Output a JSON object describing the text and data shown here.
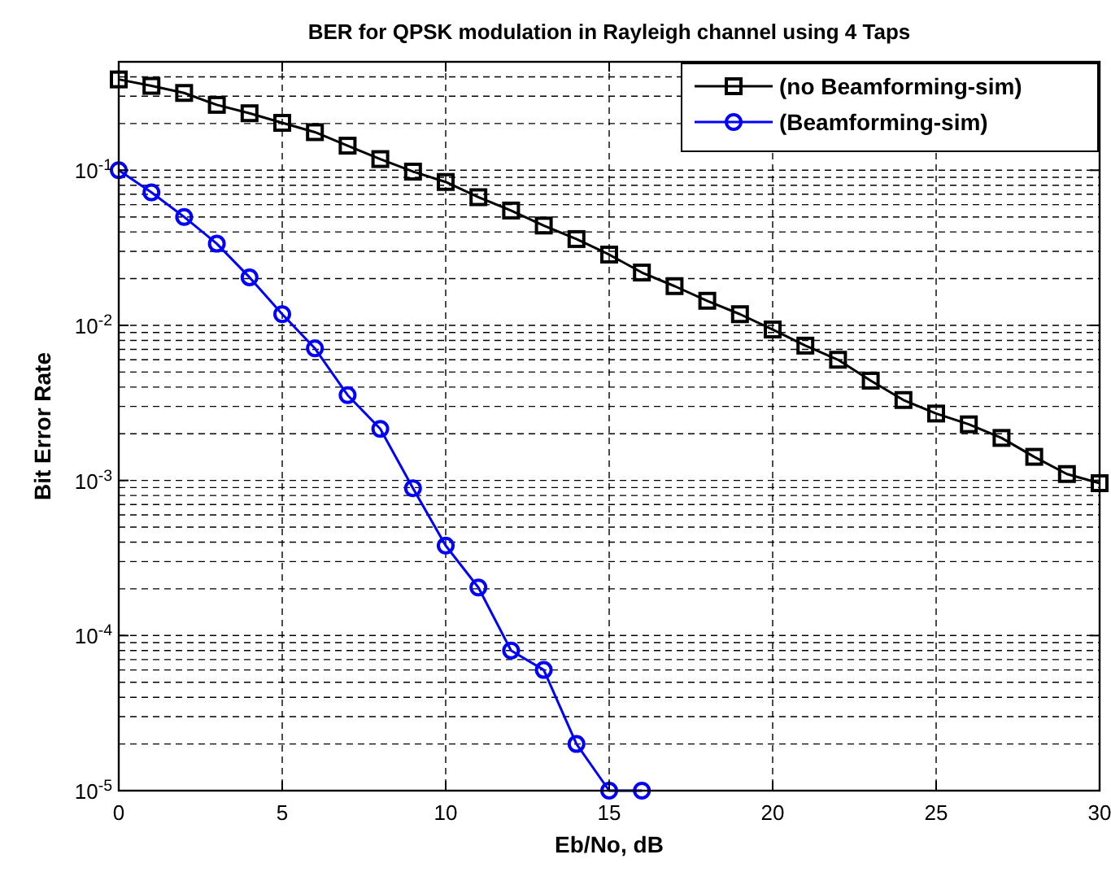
{
  "chart_data": {
    "type": "line",
    "title": "BER for QPSK modulation in Rayleigh channel using 4 Taps",
    "xlabel": "Eb/No, dB",
    "ylabel": "Bit Error Rate",
    "x": [
      0,
      1,
      2,
      3,
      4,
      5,
      6,
      7,
      8,
      9,
      10,
      11,
      12,
      13,
      14,
      15,
      16,
      17,
      18,
      19,
      20,
      21,
      22,
      23,
      24,
      25,
      26,
      27,
      28,
      29,
      30
    ],
    "series": [
      {
        "name": "(no Beamforming-sim)",
        "color": "#000000",
        "marker": "square",
        "values": [
          0.385,
          0.35,
          0.315,
          0.264,
          0.233,
          0.202,
          0.176,
          0.144,
          0.118,
          0.098,
          0.084,
          0.067,
          0.055,
          0.044,
          0.036,
          0.0286,
          0.0219,
          0.0179,
          0.0144,
          0.0118,
          0.0094,
          0.0074,
          0.006,
          0.0044,
          0.0033,
          0.0027,
          0.0023,
          0.00188,
          0.00142,
          0.0011,
          0.00096
        ]
      },
      {
        "name": "(Beamforming-sim)",
        "color": "#0000ff",
        "marker": "circle",
        "x": [
          0,
          1,
          2,
          3,
          4,
          5,
          6,
          7,
          8,
          9,
          10,
          11,
          12,
          13,
          14,
          15,
          16
        ],
        "values": [
          0.1,
          0.072,
          0.05,
          0.0336,
          0.0204,
          0.0118,
          0.0071,
          0.00355,
          0.00215,
          0.00089,
          0.00038,
          0.000204,
          8e-05,
          6e-05,
          2e-05,
          1e-05,
          1e-05
        ]
      }
    ],
    "xlim": [
      0,
      30
    ],
    "xticks": [
      0,
      5,
      10,
      15,
      20,
      25,
      30
    ],
    "ylim": [
      1e-05,
      0.5
    ],
    "log": true,
    "yticks": [
      {
        "value": 1e-05,
        "label": "10$^{-5}$"
      },
      {
        "value": 0.0001,
        "label": "10$^{-4}$"
      },
      {
        "value": 0.001,
        "label": "10$^{-3}$"
      },
      {
        "value": 0.01,
        "label": "10$^{-2}$"
      },
      {
        "value": 0.1,
        "label": "10$^{-1}$"
      }
    ],
    "grid": true,
    "legend": "top right",
    "line_style": "solid"
  }
}
